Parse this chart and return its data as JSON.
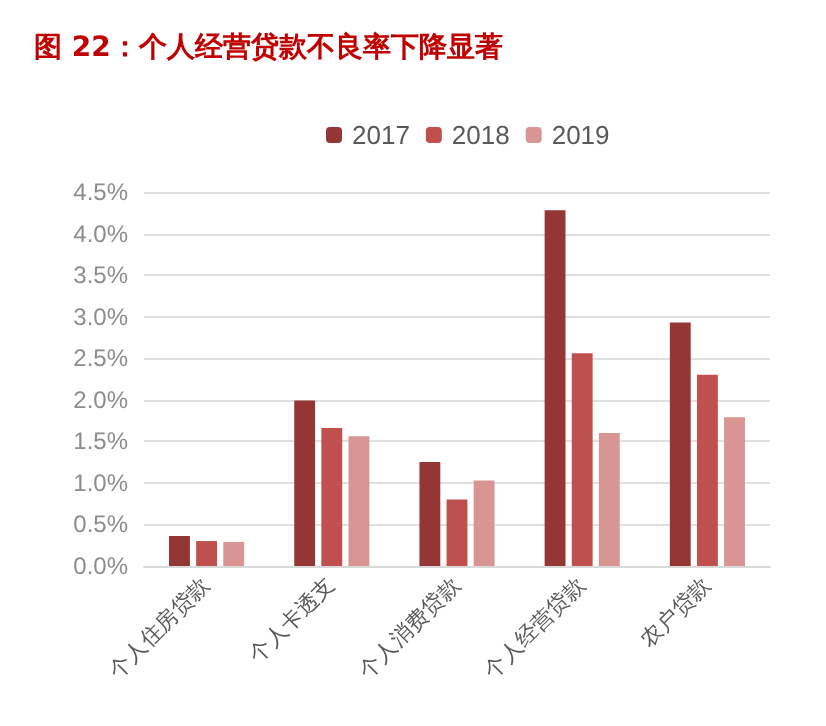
{
  "chart_data": {
    "type": "bar",
    "title": "图 22：个人经营贷款不良率下降显著",
    "categories": [
      "个人住房贷款",
      "个人卡透支",
      "个人消费贷款",
      "个人经营贷款",
      "农户贷款"
    ],
    "series": [
      {
        "name": "2017",
        "color": "#943634",
        "values": [
          0.36,
          1.99,
          1.25,
          4.28,
          2.93
        ]
      },
      {
        "name": "2018",
        "color": "#c0504d",
        "values": [
          0.3,
          1.66,
          0.8,
          2.56,
          2.3
        ]
      },
      {
        "name": "2019",
        "color": "#d99594",
        "values": [
          0.29,
          1.56,
          1.03,
          1.6,
          1.79
        ]
      }
    ],
    "ylim": [
      0,
      4.5
    ],
    "yticks": [
      {
        "value": 0,
        "label": "0.0%"
      },
      {
        "value": 0.5,
        "label": "0.5%"
      },
      {
        "value": 1,
        "label": "1.0%"
      },
      {
        "value": 1.5,
        "label": "1.5%"
      },
      {
        "value": 2,
        "label": "2.0%"
      },
      {
        "value": 2.5,
        "label": "2.5%"
      },
      {
        "value": 3,
        "label": "3.0%"
      },
      {
        "value": 3.5,
        "label": "3.5%"
      },
      {
        "value": 4,
        "label": "4.0%"
      },
      {
        "value": 4.5,
        "label": "4.5%"
      }
    ],
    "grid": "y",
    "legend": "top"
  }
}
